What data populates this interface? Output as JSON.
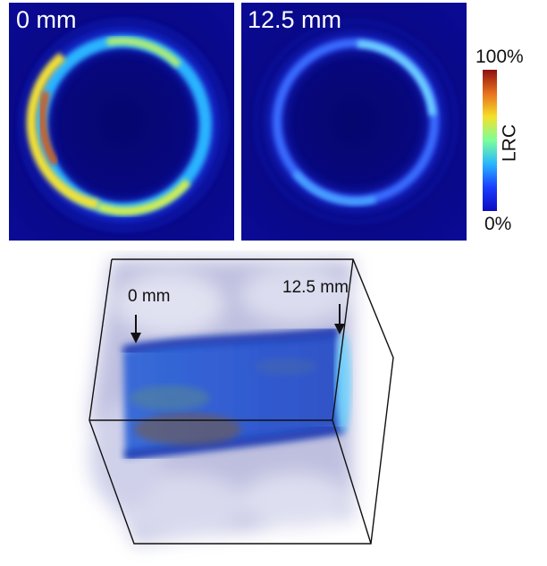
{
  "panels": {
    "left": {
      "label": "0 mm"
    },
    "right": {
      "label": "12.5 mm"
    }
  },
  "colorbar": {
    "max_label": "100%",
    "min_label": "0%",
    "title": "LRC",
    "colors": [
      "#0b0bbf",
      "#1a3dff",
      "#29b6ff",
      "#7bff9a",
      "#f5e02a",
      "#e8701d",
      "#8c1010"
    ]
  },
  "volume": {
    "label_start": "0 mm",
    "label_end": "12.5 mm"
  },
  "colors": {
    "background_field": "#0a0a8a"
  }
}
